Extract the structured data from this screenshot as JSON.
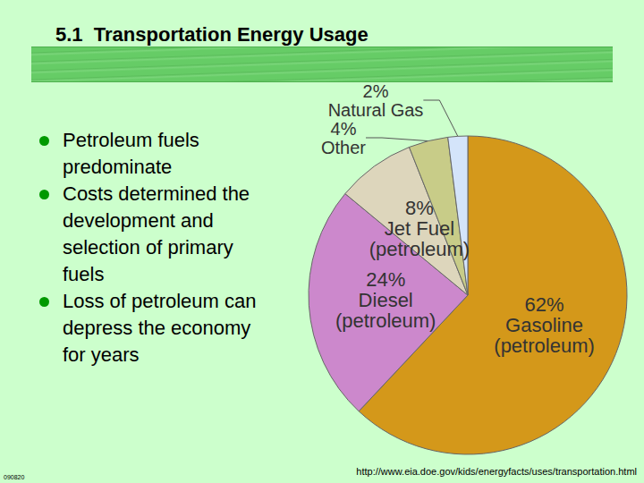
{
  "chart_data": {
    "type": "pie",
    "title": "5.1  Transportation Energy Usage",
    "categories": [
      "Gasoline (petroleum)",
      "Diesel (petroleum)",
      "Jet Fuel (petroleum)",
      "Other",
      "Natural Gas"
    ],
    "values": [
      62,
      24,
      8,
      4,
      2
    ],
    "value_labels": [
      "62%",
      "24%",
      "8%",
      "4%",
      "2%"
    ],
    "colors": [
      "#d4981a",
      "#cc88cc",
      "#ddd6bc",
      "#c8cc88",
      "#d4e4fa"
    ],
    "data_labels": true,
    "annotations": {
      "bullets": [
        "Petroleum fuels predominate",
        "Costs determined the development and selection of primary fuels",
        "Loss of petroleum can depress the economy for years"
      ],
      "source": "http://www.eia.doe.gov/kids/energyfacts/uses/transportation.html",
      "slide_code": "090820"
    }
  }
}
